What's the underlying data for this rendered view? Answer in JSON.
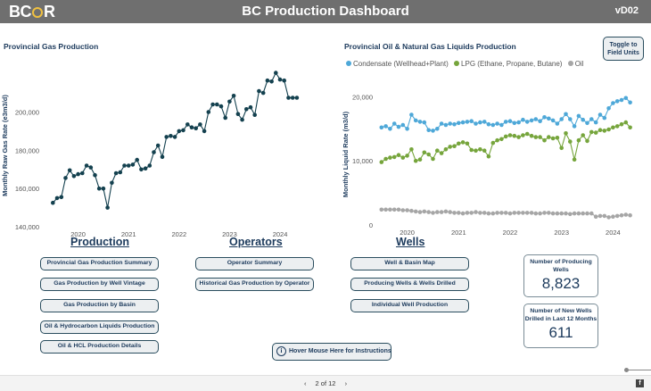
{
  "header": {
    "logo": "BC",
    "logo_end": "R",
    "title": "BC Production Dashboard",
    "version": "vD02"
  },
  "gas_chart": {
    "title": "Provincial Gas Production",
    "chart_data": {
      "type": "line",
      "title": "Provincial Gas Production",
      "ylabel": "Monthly Raw Gas Rate (e3m3/d)",
      "xlabel": "",
      "ylim": [
        140000,
        225000
      ],
      "xlim": [
        2019.3,
        2024.6
      ],
      "y_ticks": [
        "140,000",
        "160,000",
        "180,000",
        "200,000"
      ],
      "x_ticks": [
        "2020",
        "2021",
        "2022",
        "2023",
        "2024"
      ],
      "color": "#14414f",
      "x": [
        2019.5,
        2019.583,
        2019.667,
        2019.75,
        2019.833,
        2019.917,
        2020.0,
        2020.083,
        2020.167,
        2020.25,
        2020.333,
        2020.417,
        2020.5,
        2020.583,
        2020.667,
        2020.75,
        2020.833,
        2020.917,
        2021.0,
        2021.083,
        2021.167,
        2021.25,
        2021.333,
        2021.417,
        2021.5,
        2021.583,
        2021.667,
        2021.75,
        2021.833,
        2021.917,
        2022.0,
        2022.083,
        2022.167,
        2022.25,
        2022.333,
        2022.417,
        2022.5,
        2022.583,
        2022.667,
        2022.75,
        2022.833,
        2022.917,
        2023.0,
        2023.083,
        2023.167,
        2023.25,
        2023.333,
        2023.417,
        2023.5,
        2023.583,
        2023.667,
        2023.75,
        2023.833,
        2023.917,
        2024.0,
        2024.083,
        2024.167,
        2024.25,
        2024.333
      ],
      "y": [
        152500,
        155000,
        155500,
        165500,
        169500,
        166500,
        167500,
        168000,
        172000,
        171000,
        167000,
        160000,
        160000,
        150000,
        163000,
        168000,
        168500,
        172000,
        172000,
        172500,
        175000,
        170000,
        170500,
        172000,
        179000,
        182500,
        176500,
        187000,
        187500,
        187000,
        190000,
        190500,
        193500,
        192000,
        191500,
        193500,
        190000,
        200000,
        204000,
        204000,
        203000,
        197000,
        205500,
        208500,
        199000,
        196000,
        201500,
        202500,
        198500,
        211000,
        210000,
        216500,
        216000,
        220500,
        217000,
        216500,
        207500,
        207500,
        207500
      ]
    }
  },
  "liquids_chart": {
    "title": "Provincial Oil & Natural Gas Liquids Production",
    "legend": [
      {
        "label": "Condensate (Wellhead+Plant)",
        "color": "#4ea8d8"
      },
      {
        "label": "LPG (Ethane, Propane, Butane)",
        "color": "#76a53c"
      },
      {
        "label": "Oil",
        "color": "#a6a6a6"
      }
    ],
    "chart_data": {
      "type": "line",
      "title": "Provincial Oil & Natural Gas Liquids Production",
      "ylabel": "Monthly Liquid Rate (m3/d)",
      "xlabel": "",
      "ylim": [
        0,
        22000
      ],
      "xlim": [
        2019.4,
        2024.6
      ],
      "y_ticks": [
        "0",
        "10,000",
        "20,000"
      ],
      "x_ticks": [
        "2020",
        "2021",
        "2022",
        "2023",
        "2024"
      ],
      "x": [
        2019.5,
        2019.583,
        2019.667,
        2019.75,
        2019.833,
        2019.917,
        2020.0,
        2020.083,
        2020.167,
        2020.25,
        2020.333,
        2020.417,
        2020.5,
        2020.583,
        2020.667,
        2020.75,
        2020.833,
        2020.917,
        2021.0,
        2021.083,
        2021.167,
        2021.25,
        2021.333,
        2021.417,
        2021.5,
        2021.583,
        2021.667,
        2021.75,
        2021.833,
        2021.917,
        2022.0,
        2022.083,
        2022.167,
        2022.25,
        2022.333,
        2022.417,
        2022.5,
        2022.583,
        2022.667,
        2022.75,
        2022.833,
        2022.917,
        2023.0,
        2023.083,
        2023.167,
        2023.25,
        2023.333,
        2023.417,
        2023.5,
        2023.583,
        2023.667,
        2023.75,
        2023.833,
        2023.917,
        2024.0,
        2024.083,
        2024.167,
        2024.25,
        2024.333
      ],
      "series": [
        {
          "name": "Condensate (Wellhead+Plant)",
          "color": "#4ea8d8",
          "values": [
            15200,
            15400,
            15000,
            15800,
            15300,
            15600,
            15000,
            17200,
            16300,
            16100,
            16000,
            14800,
            14700,
            15000,
            15800,
            15600,
            15800,
            15700,
            15900,
            16000,
            16100,
            16200,
            15800,
            16000,
            16100,
            15700,
            15600,
            15800,
            15600,
            16100,
            16200,
            15900,
            16000,
            16400,
            16100,
            16300,
            16500,
            16200,
            16800,
            16600,
            16300,
            15800,
            16500,
            17300,
            16500,
            15400,
            17000,
            16400,
            15900,
            16500,
            16000,
            17200,
            16700,
            18200,
            19000,
            19300,
            19500,
            19800,
            19100
          ]
        },
        {
          "name": "LPG (Ethane, Propane, Butane)",
          "color": "#76a53c",
          "values": [
            9800,
            10300,
            10500,
            10600,
            10900,
            10500,
            10800,
            11800,
            10000,
            10200,
            11300,
            11000,
            10300,
            11600,
            11200,
            11800,
            12200,
            12300,
            12700,
            12900,
            12700,
            11700,
            11600,
            11800,
            11600,
            10700,
            12800,
            13200,
            13400,
            13800,
            14000,
            13900,
            13700,
            14000,
            14200,
            13900,
            13700,
            13700,
            13200,
            13700,
            13500,
            13600,
            12000,
            14300,
            13000,
            10200,
            13200,
            14000,
            13100,
            14500,
            14400,
            14800,
            14700,
            14900,
            15200,
            15400,
            15700,
            16000,
            15200
          ]
        },
        {
          "name": "Oil",
          "color": "#a6a6a6",
          "values": [
            2400,
            2400,
            2400,
            2400,
            2400,
            2300,
            2300,
            2200,
            2100,
            2000,
            2100,
            2000,
            1900,
            2000,
            2000,
            2100,
            2000,
            1900,
            1900,
            1800,
            1900,
            1900,
            2000,
            1900,
            1900,
            1800,
            1800,
            1900,
            1900,
            1900,
            1800,
            1900,
            1900,
            1900,
            1900,
            1900,
            1800,
            1800,
            1900,
            1900,
            1800,
            1800,
            1800,
            1800,
            1700,
            1800,
            1800,
            1800,
            1800,
            1800,
            1300,
            1400,
            1400,
            1200,
            1300,
            1400,
            1500,
            1600,
            1500
          ]
        }
      ]
    }
  },
  "toggle": {
    "label_1": "Toggle to",
    "label_2": "Field Units"
  },
  "production": {
    "heading": "Production",
    "buttons": [
      "Provincial Gas Production Summary",
      "Gas Production by Well Vintage",
      "Gas Production by Basin",
      "Oil & Hydrocarbon Liquids Production",
      "Oil & HCL Production Details"
    ]
  },
  "operators": {
    "heading": "Operators",
    "buttons": [
      "Operator Summary",
      "Historical Gas Production by Operator"
    ]
  },
  "wells": {
    "heading": "Wells",
    "buttons": [
      "Well & Basin Map",
      "Producing Wells & Wells Drilled",
      "Individual Well Production"
    ]
  },
  "cards": {
    "producing": {
      "label": "Number of Producing Wells",
      "value": "8,823"
    },
    "new_wells": {
      "label": "Number of New Wells Drilled in Last 12 Months",
      "value": "611"
    }
  },
  "hover_help": {
    "icon": "i",
    "label": "Hover Mouse Here for Instructions"
  },
  "footer": {
    "prev": "‹",
    "page": "2 of 12",
    "next": "›",
    "fb_icon": "f"
  }
}
